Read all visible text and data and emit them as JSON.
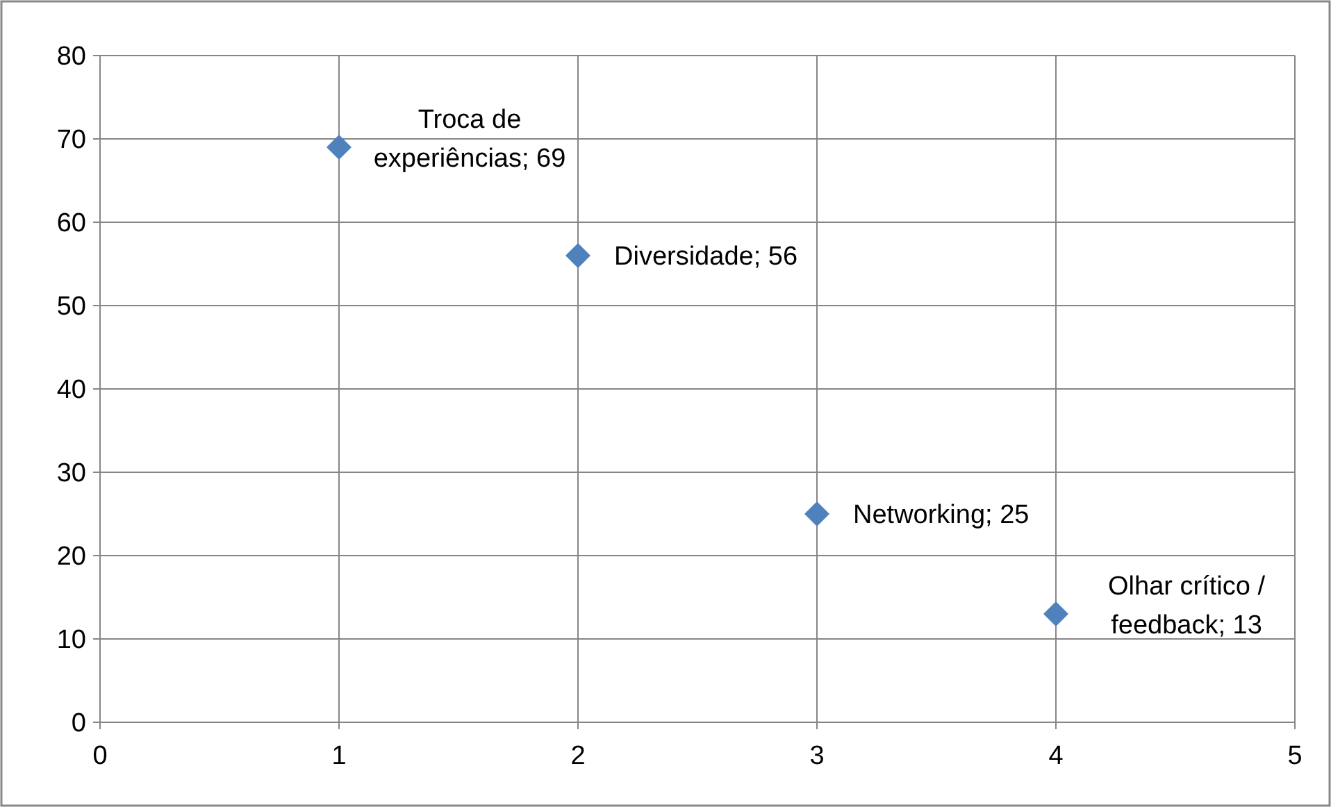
{
  "chart_data": {
    "type": "scatter",
    "x": [
      1,
      2,
      3,
      4
    ],
    "values": [
      69,
      56,
      25,
      13
    ],
    "color": "#4f81bd",
    "marker": "diamond",
    "value_labels": [
      "Troca de experiências; 69",
      "Diversidade; 56",
      "Networking; 25",
      "Olhar crítico / feedback; 13"
    ],
    "xlim": [
      0,
      5
    ],
    "xticks": [
      0,
      1,
      2,
      3,
      4,
      5
    ],
    "ylim": [
      0,
      80
    ],
    "yticks": [
      0,
      10,
      20,
      30,
      40,
      50,
      60,
      70,
      80
    ],
    "grid": true
  }
}
